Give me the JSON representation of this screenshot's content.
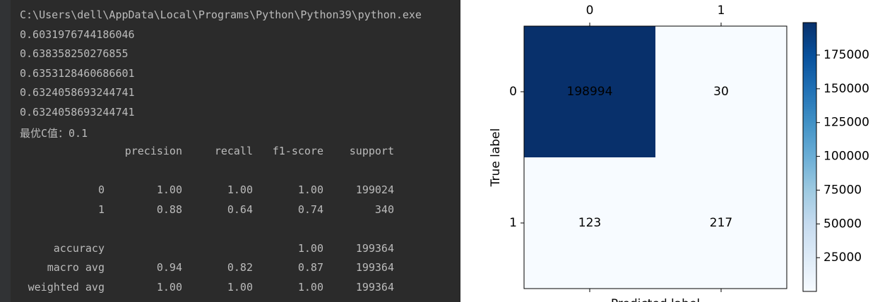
{
  "console": {
    "lines": [
      "C:\\Users\\dell\\AppData\\Local\\Programs\\Python\\Python39\\python.exe",
      "0.6031976744186046",
      "0.638358250276855",
      "0.6353128460686601",
      "0.6324058693244741",
      "0.6324058693244741",
      "最优C值：0.1"
    ],
    "report": {
      "header": [
        "precision",
        "recall",
        "f1-score",
        "support"
      ],
      "rows": [
        {
          "label": "0",
          "precision": "1.00",
          "recall": "1.00",
          "f1": "1.00",
          "support": "199024"
        },
        {
          "label": "1",
          "precision": "0.88",
          "recall": "0.64",
          "f1": "0.74",
          "support": "340"
        },
        {
          "label": "accuracy",
          "f1": "1.00",
          "support": "199364"
        },
        {
          "label": "macro avg",
          "precision": "0.94",
          "recall": "0.82",
          "f1": "0.87",
          "support": "199364"
        },
        {
          "label": "weighted avg",
          "precision": "1.00",
          "recall": "1.00",
          "f1": "1.00",
          "support": "199364"
        }
      ]
    }
  },
  "chart_data": {
    "type": "heatmap",
    "xlabel": "Predicted label",
    "ylabel": "True label",
    "x_categories": [
      "0",
      "1"
    ],
    "y_categories": [
      "0",
      "1"
    ],
    "values": [
      [
        198994,
        30
      ],
      [
        123,
        217
      ]
    ],
    "colormap": [
      "#f7fbff",
      "#deebf7",
      "#c6dbef",
      "#9ecae1",
      "#6baed6",
      "#4292c6",
      "#2171b5",
      "#08519c",
      "#08306b"
    ],
    "clim": [
      30,
      198994
    ],
    "cticks": [
      25000,
      50000,
      75000,
      100000,
      125000,
      150000,
      175000
    ]
  }
}
